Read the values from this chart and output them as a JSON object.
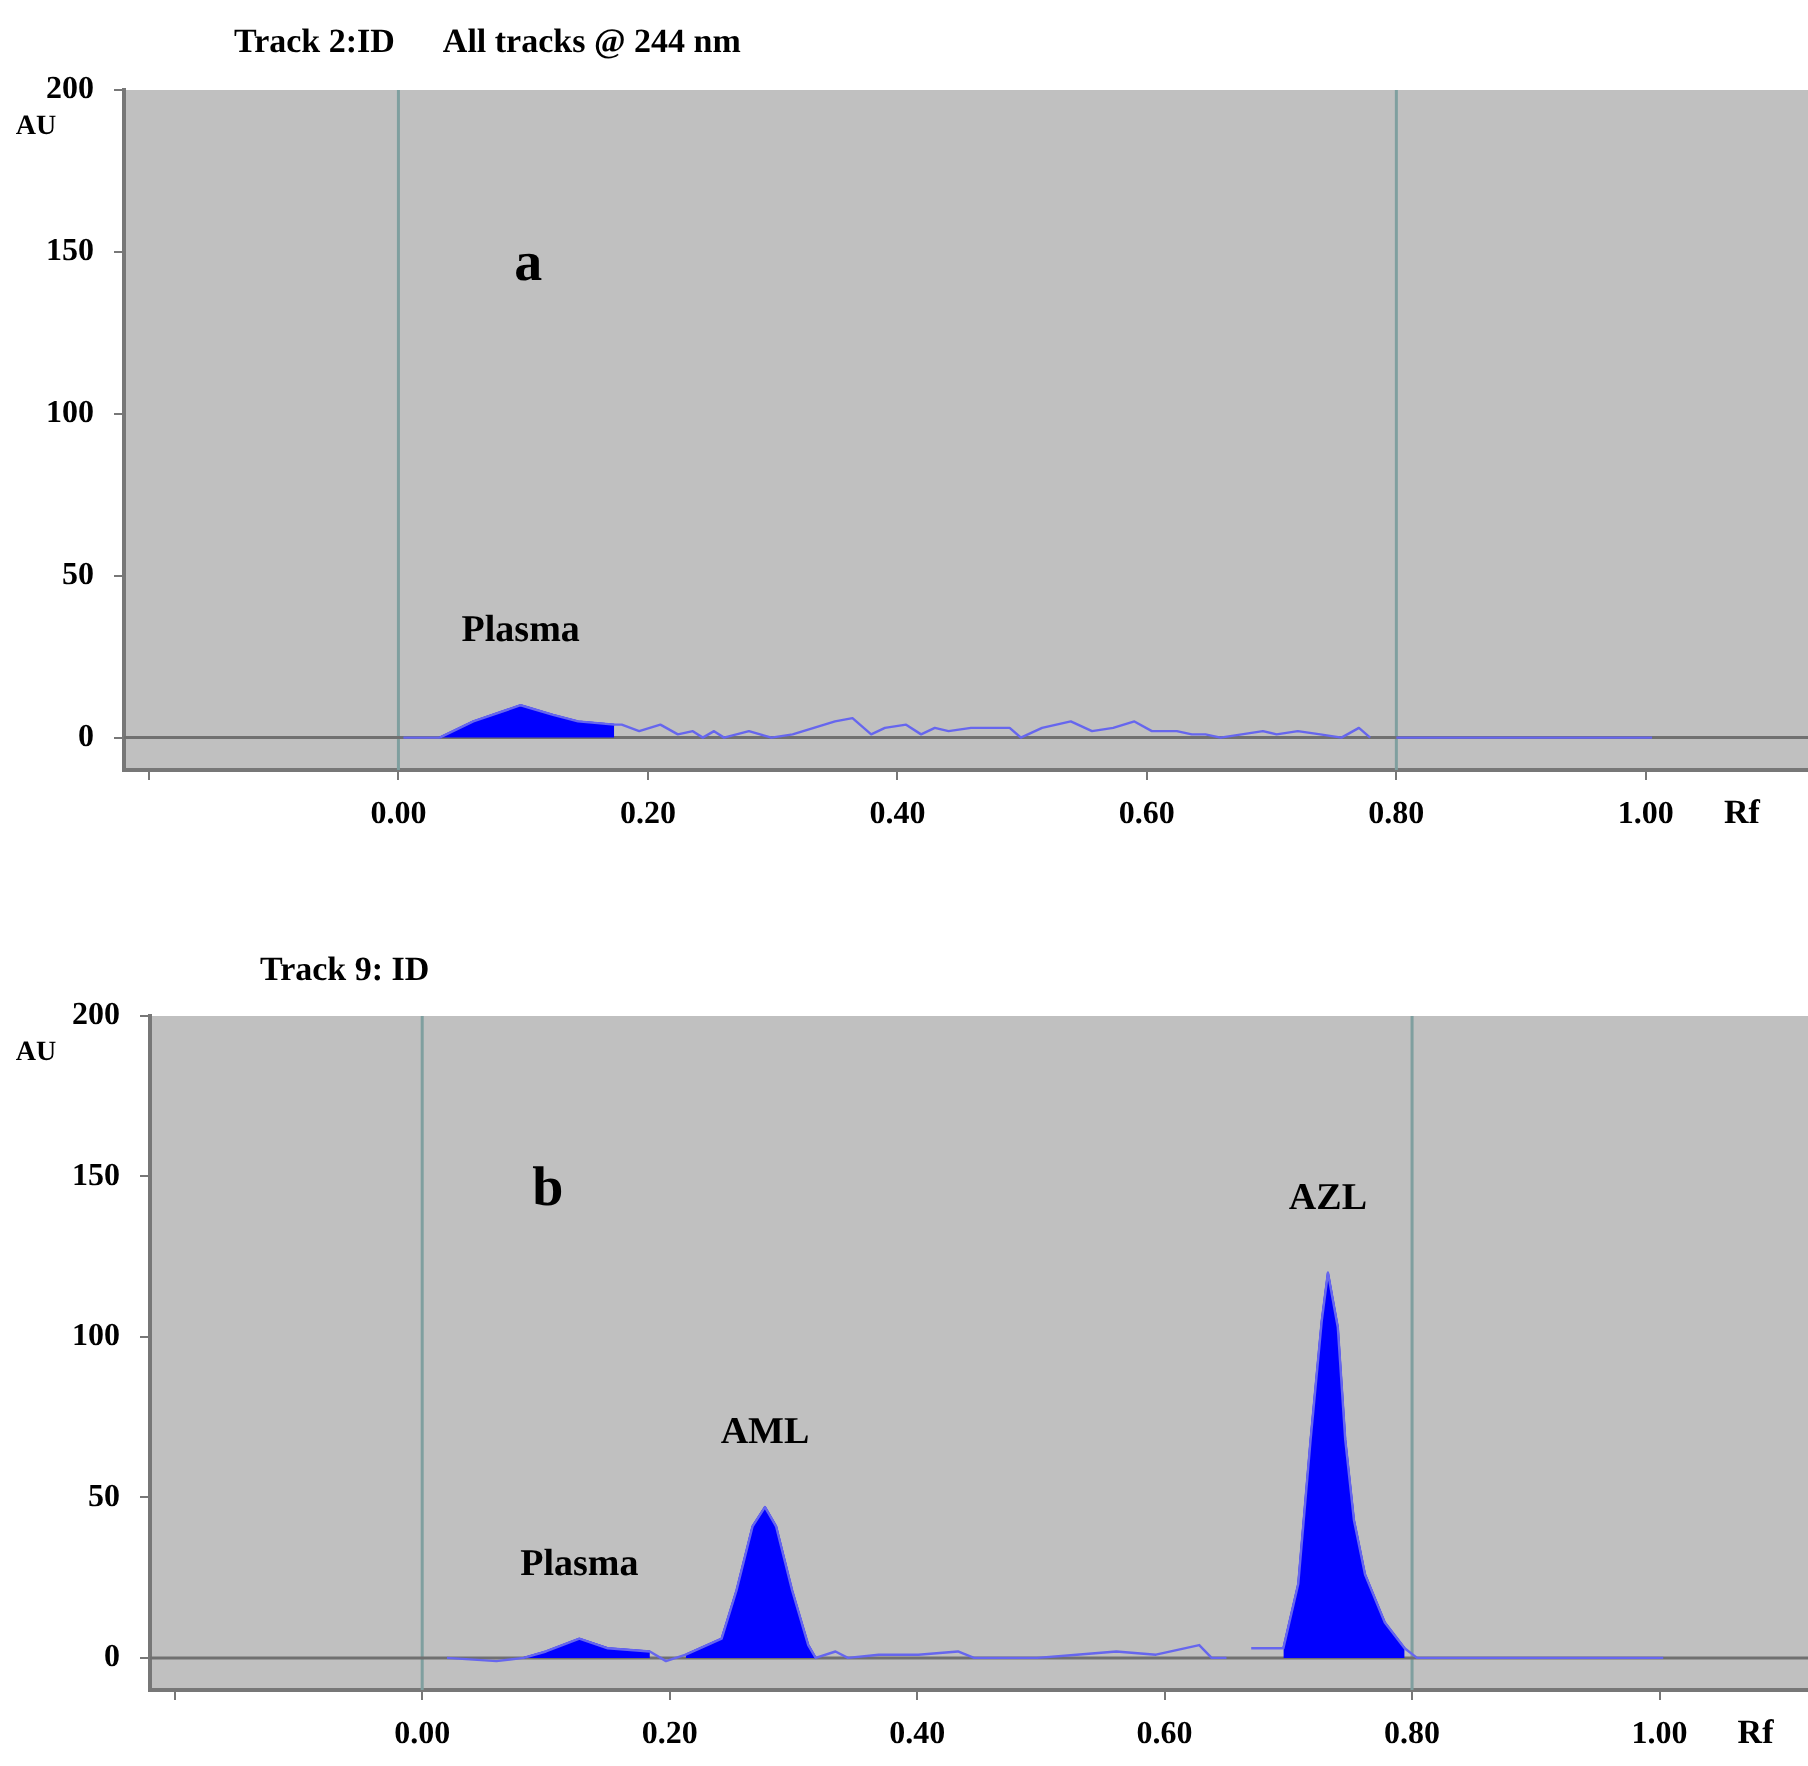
{
  "chart_data": [
    {
      "type": "line",
      "title": "Track 2:ID",
      "subtitle": "All tracks @ 244 nm",
      "xlabel": "Rf",
      "ylabel": "AU",
      "marker": "none",
      "xlim": [
        -0.22,
        1.13
      ],
      "ylim": [
        -10,
        200
      ],
      "xticks": [
        {
          "value": -0.2,
          "label": null
        },
        {
          "value": 0,
          "label": "0.00"
        },
        {
          "value": 0.2,
          "label": "0.20"
        },
        {
          "value": 0.4,
          "label": "0.40"
        },
        {
          "value": 0.6,
          "label": "0.60"
        },
        {
          "value": 0.8,
          "label": "0.80"
        },
        {
          "value": 1,
          "label": "1.00"
        }
      ],
      "yticks": [
        0,
        50,
        100,
        150,
        200
      ],
      "ref_lines": [
        {
          "axis": "x",
          "value": 0,
          "color": "#7f9f9f"
        },
        {
          "axis": "x",
          "value": 0.8,
          "color": "#7f9f9f"
        },
        {
          "axis": "y",
          "value": 0,
          "color": "#707070"
        }
      ],
      "annotations": [
        "a",
        {
          "text": "Plasma",
          "x": 0.098,
          "y": 10
        }
      ],
      "series": [
        {
          "type": "area",
          "color": "#0000ff",
          "x": [
            0.033,
            0.06,
            0.098,
            0.124,
            0.144,
            0.173
          ],
          "values": [
            0,
            5,
            10,
            7,
            5,
            4
          ]
        },
        {
          "type": "line",
          "color": "#6666ee",
          "x": [
            0.004,
            0.033,
            0.06,
            0.098,
            0.124,
            0.144,
            0.173,
            0.179,
            0.193,
            0.21,
            0.224,
            0.236,
            0.244,
            0.253,
            0.261,
            0.281,
            0.299,
            0.316,
            0.333,
            0.35,
            0.364,
            0.379,
            0.39,
            0.407,
            0.419,
            0.43,
            0.441,
            0.459,
            0.49,
            0.499,
            0.516,
            0.539,
            0.556,
            0.573,
            0.59,
            0.604,
            0.624,
            0.636,
            0.647,
            0.659,
            0.676,
            0.693,
            0.704,
            0.721,
            0.739,
            0.756,
            0.77,
            0.779,
            0.79,
            0.8,
            1.005
          ],
          "values": [
            0,
            0,
            5,
            10,
            7,
            5,
            4,
            4,
            2,
            4,
            1,
            2,
            0,
            2,
            0,
            2,
            0,
            1,
            3,
            5,
            6,
            1,
            3,
            4,
            1,
            3,
            2,
            3,
            3,
            0,
            3,
            5,
            2,
            3,
            5,
            2,
            2,
            1,
            1,
            0,
            1,
            2,
            1,
            2,
            1,
            0,
            3,
            0,
            null,
            0,
            0
          ]
        }
      ]
    },
    {
      "type": "line",
      "title": "Track 9: ID",
      "xlabel": "Rf",
      "ylabel": "AU",
      "marker": "none",
      "xlim": [
        -0.22,
        1.12
      ],
      "ylim": [
        -10,
        200
      ],
      "xticks": [
        {
          "value": -0.2,
          "label": null
        },
        {
          "value": 0,
          "label": "0.00"
        },
        {
          "value": 0.2,
          "label": "0.20"
        },
        {
          "value": 0.4,
          "label": "0.40"
        },
        {
          "value": 0.6,
          "label": "0.60"
        },
        {
          "value": 0.8,
          "label": "0.80"
        },
        {
          "value": 1,
          "label": "1.00"
        }
      ],
      "yticks": [
        0,
        50,
        100,
        150,
        200
      ],
      "ref_lines": [
        {
          "axis": "x",
          "value": 0,
          "color": "#7f9f9f"
        },
        {
          "axis": "x",
          "value": 0.8,
          "color": "#7f9f9f"
        },
        {
          "axis": "y",
          "value": 0,
          "color": "#707070"
        }
      ],
      "annotations": [
        "b",
        {
          "text": "Plasma",
          "x": 0.127,
          "y": 6
        },
        {
          "text": "AML",
          "x": 0.277,
          "y": 47
        },
        {
          "text": "AZL",
          "x": 0.732,
          "y": 120
        }
      ],
      "series": [
        {
          "type": "area",
          "color": "#0000ff",
          "x": [
            0.082,
            0.1,
            0.127,
            0.15,
            0.184,
            0.2,
            0.213,
            0.242,
            0.254,
            0.267,
            0.277,
            0.286,
            0.299,
            0.312,
            0.318,
            0.5,
            0.696,
            0.708,
            0.718,
            0.727,
            0.732,
            0.74,
            0.746,
            0.753,
            0.762,
            0.778,
            0.794
          ],
          "values": [
            0,
            2,
            6,
            3,
            2,
            null,
            1,
            6,
            21,
            41,
            47,
            41,
            21,
            4,
            0,
            null,
            3,
            23,
            68,
            105,
            120,
            103,
            68,
            43,
            26,
            11,
            3
          ]
        },
        {
          "type": "line",
          "color": "#6666ee",
          "x": [
            0.02,
            0.06,
            0.082,
            0.1,
            0.127,
            0.15,
            0.184,
            0.197,
            0.213,
            0.242,
            0.254,
            0.267,
            0.277,
            0.286,
            0.299,
            0.312,
            0.318,
            0.334,
            0.344,
            0.369,
            0.401,
            0.433,
            0.446,
            0.497,
            0.529,
            0.561,
            0.593,
            0.628,
            0.638,
            0.65,
            0.66,
            0.67,
            0.696,
            0.708,
            0.718,
            0.727,
            0.732,
            0.74,
            0.746,
            0.753,
            0.762,
            0.778,
            0.794,
            0.804,
            1.003
          ],
          "values": [
            0,
            -1,
            0,
            2,
            6,
            3,
            2,
            -1,
            1,
            6,
            21,
            41,
            47,
            41,
            21,
            4,
            0,
            2,
            0,
            1,
            1,
            2,
            0,
            0,
            1,
            2,
            1,
            4,
            0,
            0,
            null,
            3,
            3,
            23,
            68,
            105,
            120,
            103,
            68,
            43,
            26,
            11,
            3,
            0,
            0
          ]
        }
      ]
    }
  ]
}
